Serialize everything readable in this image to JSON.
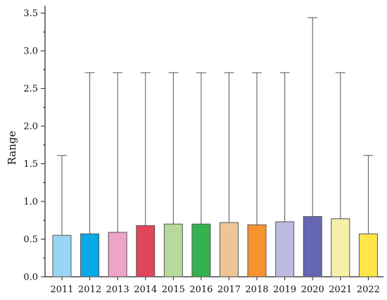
{
  "chart_data": {
    "type": "bar",
    "title": "",
    "xlabel": "",
    "ylabel": "Range",
    "ylim": [
      0,
      3.6
    ],
    "yticks": [
      "0.0",
      "0.5",
      "1.0",
      "1.5",
      "2.0",
      "2.5",
      "3.0",
      "3.5"
    ],
    "categories": [
      "2011",
      "2012",
      "2013",
      "2014",
      "2015",
      "2016",
      "2017",
      "2018",
      "2019",
      "2020",
      "2021",
      "2022"
    ],
    "series": [
      {
        "values": [
          0.55,
          0.57,
          0.59,
          0.68,
          0.7,
          0.7,
          0.72,
          0.69,
          0.73,
          0.8,
          0.77,
          0.57
        ],
        "error_upper": [
          1.61,
          2.71,
          2.71,
          2.71,
          2.71,
          2.71,
          2.71,
          2.71,
          2.71,
          3.44,
          2.71,
          1.61
        ]
      }
    ],
    "colors": [
      "#99d6f5",
      "#09a8e6",
      "#f0a3c9",
      "#e0455a",
      "#b7d99c",
      "#33b34f",
      "#f0c595",
      "#f79431",
      "#bbbbe0",
      "#6566b3",
      "#f5efa8",
      "#fde54a"
    ],
    "grid": false,
    "legend": "none"
  }
}
